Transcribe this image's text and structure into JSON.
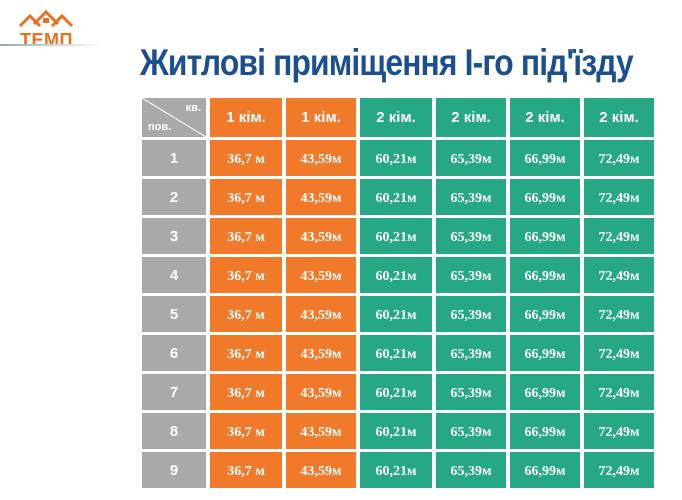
{
  "logo": {
    "text": "ТЕМП"
  },
  "title": "Житлові приміщення І-го під'їзду",
  "table": {
    "corner": {
      "top": "кв.",
      "bottom": "пов."
    },
    "headers": [
      "1 кім.",
      "1  кім.",
      "2 кім.",
      "2 кім.",
      "2 кім.",
      "2 кім."
    ],
    "rows": [
      {
        "floor": "1",
        "values": [
          "36,7 м",
          "43,59м",
          "60,21м",
          "65,39м",
          "66,99м",
          "72,49м"
        ]
      },
      {
        "floor": "2",
        "values": [
          "36,7 м",
          "43,59м",
          "60,21м",
          "65,39м",
          "66,99м",
          "72,49м"
        ]
      },
      {
        "floor": "3",
        "values": [
          "36,7 м",
          "43,59м",
          "60,21м",
          "65,39м",
          "66,99м",
          "72,49м"
        ]
      },
      {
        "floor": "4",
        "values": [
          "36,7 м",
          "43,59м",
          "60,21м",
          "65,39м",
          "66,99м",
          "72,49м"
        ]
      },
      {
        "floor": "5",
        "values": [
          "36,7 м",
          "43,59м",
          "60,21м",
          "65,39м",
          "66,99м",
          "72,49м"
        ]
      },
      {
        "floor": "6",
        "values": [
          "36,7 м",
          "43,59м",
          "60,21м",
          "65,39м",
          "66,99м",
          "72,49м"
        ]
      },
      {
        "floor": "7",
        "values": [
          "36,7 м",
          "43,59м",
          "60,21м",
          "65,39м",
          "66,99м",
          "72,49м"
        ]
      },
      {
        "floor": "8",
        "values": [
          "36,7 м",
          "43,59м",
          "60,21м",
          "65,39м",
          "66,99м",
          "72,49м"
        ]
      },
      {
        "floor": "9",
        "values": [
          "36,7 м",
          "43,59м",
          "60,21м",
          "65,39м",
          "66,99м",
          "72,49м"
        ]
      }
    ]
  },
  "colors": {
    "orange": "#f07a2a",
    "green": "#25a883",
    "gray": "#a9a9ab",
    "title_blue": "#1b4f8f"
  }
}
